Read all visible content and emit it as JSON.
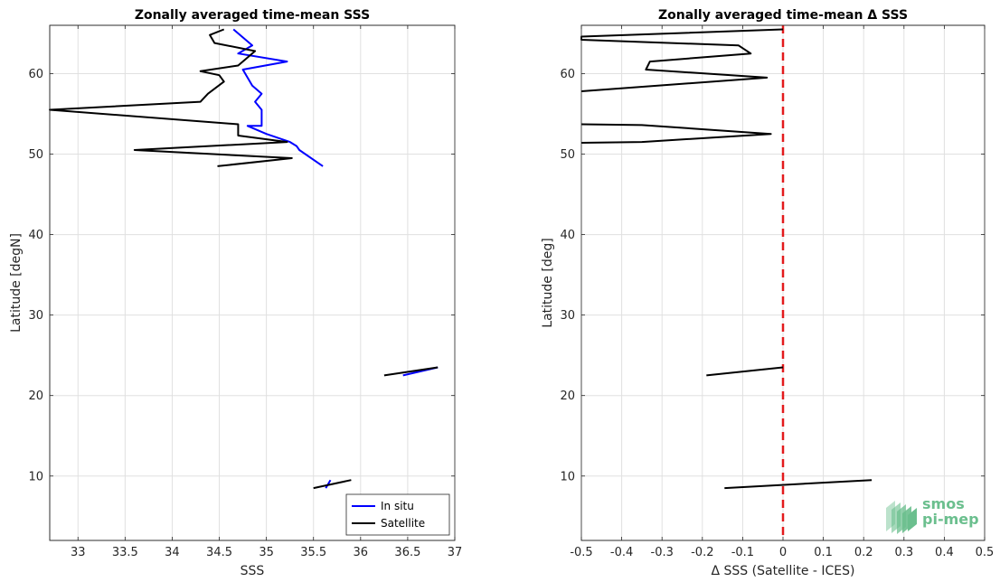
{
  "chart_data": [
    {
      "type": "line",
      "title": "Zonally averaged time-mean SSS",
      "xlabel": "SSS",
      "ylabel": "Latitude [degN]",
      "xlim": [
        32.7,
        37
      ],
      "ylim": [
        2,
        66
      ],
      "xticks": [
        33,
        33.5,
        34,
        34.5,
        35,
        35.5,
        36,
        36.5,
        37
      ],
      "xtick_labels": [
        "33",
        "33.5",
        "34",
        "34.5",
        "35",
        "35.5",
        "36",
        "36.5",
        "37"
      ],
      "yticks": [
        10,
        20,
        30,
        40,
        50,
        60
      ],
      "ytick_labels": [
        "10",
        "20",
        "30",
        "40",
        "50",
        "60"
      ],
      "grid": true,
      "legend": "bottom-right",
      "series": [
        {
          "name": "In situ",
          "color": "#0000ff",
          "segments": [
            [
              [
                34.65,
                65.5
              ],
              [
                34.75,
                64.5
              ],
              [
                34.85,
                63.5
              ],
              [
                34.7,
                62.5
              ],
              [
                35.22,
                61.5
              ],
              [
                34.75,
                60.5
              ],
              [
                34.8,
                59.5
              ],
              [
                34.85,
                58.5
              ],
              [
                34.95,
                57.5
              ],
              [
                34.88,
                56.5
              ],
              [
                34.95,
                55.5
              ],
              [
                34.95,
                54.5
              ],
              [
                34.95,
                53.5
              ],
              [
                34.8,
                53.5
              ],
              [
                35.0,
                52.5
              ],
              [
                35.25,
                51.5
              ],
              [
                35.32,
                51.0
              ],
              [
                35.35,
                50.5
              ],
              [
                35.6,
                48.5
              ]
            ],
            [
              [
                36.45,
                22.5
              ],
              [
                36.82,
                23.5
              ]
            ],
            [
              [
                35.63,
                8.5
              ],
              [
                35.68,
                9.5
              ]
            ]
          ]
        },
        {
          "name": "Satellite",
          "color": "#000000",
          "segments": [
            [
              [
                34.55,
                65.5
              ],
              [
                34.4,
                64.8
              ],
              [
                34.45,
                63.8
              ],
              [
                34.88,
                62.8
              ],
              [
                34.8,
                62.0
              ],
              [
                34.7,
                61.0
              ],
              [
                34.3,
                60.3
              ],
              [
                34.5,
                59.8
              ],
              [
                34.55,
                59.0
              ],
              [
                34.38,
                57.5
              ],
              [
                34.3,
                56.5
              ],
              [
                32.7,
                55.5
              ],
              [
                34.7,
                53.7
              ],
              [
                34.7,
                52.3
              ],
              [
                35.22,
                51.5
              ],
              [
                33.6,
                50.5
              ],
              [
                35.27,
                49.5
              ],
              [
                34.48,
                48.5
              ]
            ],
            [
              [
                36.25,
                22.5
              ],
              [
                36.82,
                23.5
              ]
            ],
            [
              [
                35.5,
                8.5
              ],
              [
                35.9,
                9.5
              ]
            ]
          ]
        }
      ]
    },
    {
      "type": "line",
      "title": "Zonally averaged time-mean Δ SSS",
      "xlabel": "Δ SSS (Satellite - ICES)",
      "ylabel": "Latitude [deg]",
      "xlim": [
        -0.5,
        0.5
      ],
      "ylim": [
        2,
        66
      ],
      "xticks": [
        -0.5,
        -0.4,
        -0.3,
        -0.2,
        -0.1,
        0,
        0.1,
        0.2,
        0.3,
        0.4,
        0.5
      ],
      "xtick_labels": [
        "-0.5",
        "-0.4",
        "-0.3",
        "-0.2",
        "-0.1",
        "0",
        "0.1",
        "0.2",
        "0.3",
        "0.4",
        "0.5"
      ],
      "yticks": [
        10,
        20,
        30,
        40,
        50,
        60
      ],
      "ytick_labels": [
        "10",
        "20",
        "30",
        "40",
        "50",
        "60"
      ],
      "grid": true,
      "zero_line": {
        "x": 0,
        "color": "#e31a1c",
        "style": "dashed"
      },
      "series": [
        {
          "color": "#000000",
          "segments": [
            [
              [
                0.0,
                65.5
              ],
              [
                -0.5,
                64.6
              ],
              [
                -0.5,
                64.2
              ],
              [
                -0.11,
                63.5
              ],
              [
                -0.08,
                62.5
              ],
              [
                -0.33,
                61.5
              ],
              [
                -0.34,
                60.5
              ],
              [
                -0.04,
                59.5
              ],
              [
                -0.5,
                57.8
              ]
            ],
            [
              [
                -0.5,
                53.7
              ],
              [
                -0.35,
                53.6
              ],
              [
                -0.03,
                52.5
              ],
              [
                -0.35,
                51.5
              ],
              [
                -0.5,
                51.4
              ]
            ],
            [
              [
                -0.19,
                22.5
              ],
              [
                0.0,
                23.5
              ]
            ],
            [
              [
                -0.145,
                8.5
              ],
              [
                0.22,
                9.5
              ]
            ]
          ]
        }
      ]
    }
  ],
  "logo": {
    "line1": "smos",
    "line2": "pi-mep",
    "color": "#6bbf8e"
  }
}
